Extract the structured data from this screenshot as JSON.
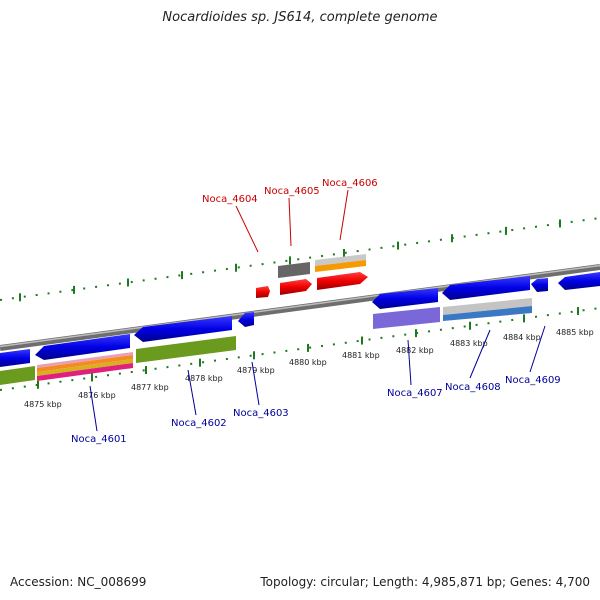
{
  "title": "Nocardioides sp. JS614, complete genome",
  "footer": {
    "accession": "Accession: NC_008699",
    "summary": "Topology: circular; Length: 4,985,871 bp; Genes: 4,700"
  },
  "colors": {
    "forward_label": "#cc0000",
    "reverse_label": "#000099",
    "tick": "#1e7a1e",
    "axis": "#8a8a8a"
  },
  "kbp_labels": [
    "4875 kbp",
    "4876 kbp",
    "4877 kbp",
    "4878 kbp",
    "4879 kbp",
    "4880 kbp",
    "4881 kbp",
    "4882 kbp",
    "4883 kbp",
    "4884 kbp",
    "4885 kbp"
  ],
  "gene_labels": {
    "forward": [
      "Noca_4604",
      "Noca_4605",
      "Noca_4606"
    ],
    "reverse": [
      "Noca_4601",
      "Noca_4602",
      "Noca_4603",
      "Noca_4607",
      "Noca_4608",
      "Noca_4609"
    ]
  }
}
